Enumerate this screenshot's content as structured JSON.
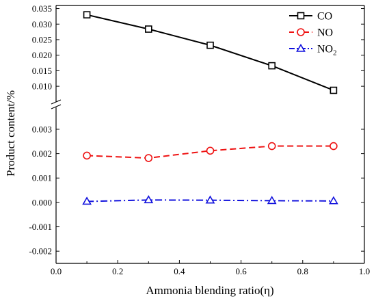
{
  "chart_data": {
    "type": "line",
    "title": "",
    "xlabel": "Ammonia blending ratio(η)",
    "ylabel": "Product content/%",
    "xlim": [
      0.0,
      1.0
    ],
    "x_ticks": [
      "0.0",
      "0.2",
      "0.4",
      "0.6",
      "0.8",
      "1.0"
    ],
    "ylim_upper": [
      0.0065,
      0.036
    ],
    "ylim_lower": [
      -0.0025,
      0.0037
    ],
    "y_ticks_upper": [
      "0.010",
      "0.015",
      "0.020",
      "0.025",
      "0.030",
      "0.035"
    ],
    "y_ticks_lower": [
      "-0.002",
      "-0.001",
      "0.000",
      "0.001",
      "0.002",
      "0.003"
    ],
    "axis_break": true,
    "grid": false,
    "legend_position": "top-right",
    "x": [
      0.1,
      0.3,
      0.5,
      0.7,
      0.9
    ],
    "series": [
      {
        "name": "CO",
        "legend_label": "CO",
        "legend_sub": "",
        "panel": "upper",
        "color": "#000000",
        "marker": "square",
        "line_style": "solid",
        "values": [
          0.033,
          0.0284,
          0.0232,
          0.0166,
          0.0087
        ]
      },
      {
        "name": "NO",
        "legend_label": "NO",
        "legend_sub": "",
        "panel": "lower",
        "color": "#ee1111",
        "marker": "circle",
        "line_style": "dashed",
        "values": [
          0.00192,
          0.00182,
          0.00212,
          0.00231,
          0.00231
        ]
      },
      {
        "name": "NO2",
        "legend_label": "NO",
        "legend_sub": "2",
        "panel": "lower",
        "color": "#1111dd",
        "marker": "triangle",
        "line_style": "dashdot",
        "values": [
          4e-05,
          0.0001,
          9e-05,
          7e-05,
          6e-05
        ]
      }
    ]
  }
}
